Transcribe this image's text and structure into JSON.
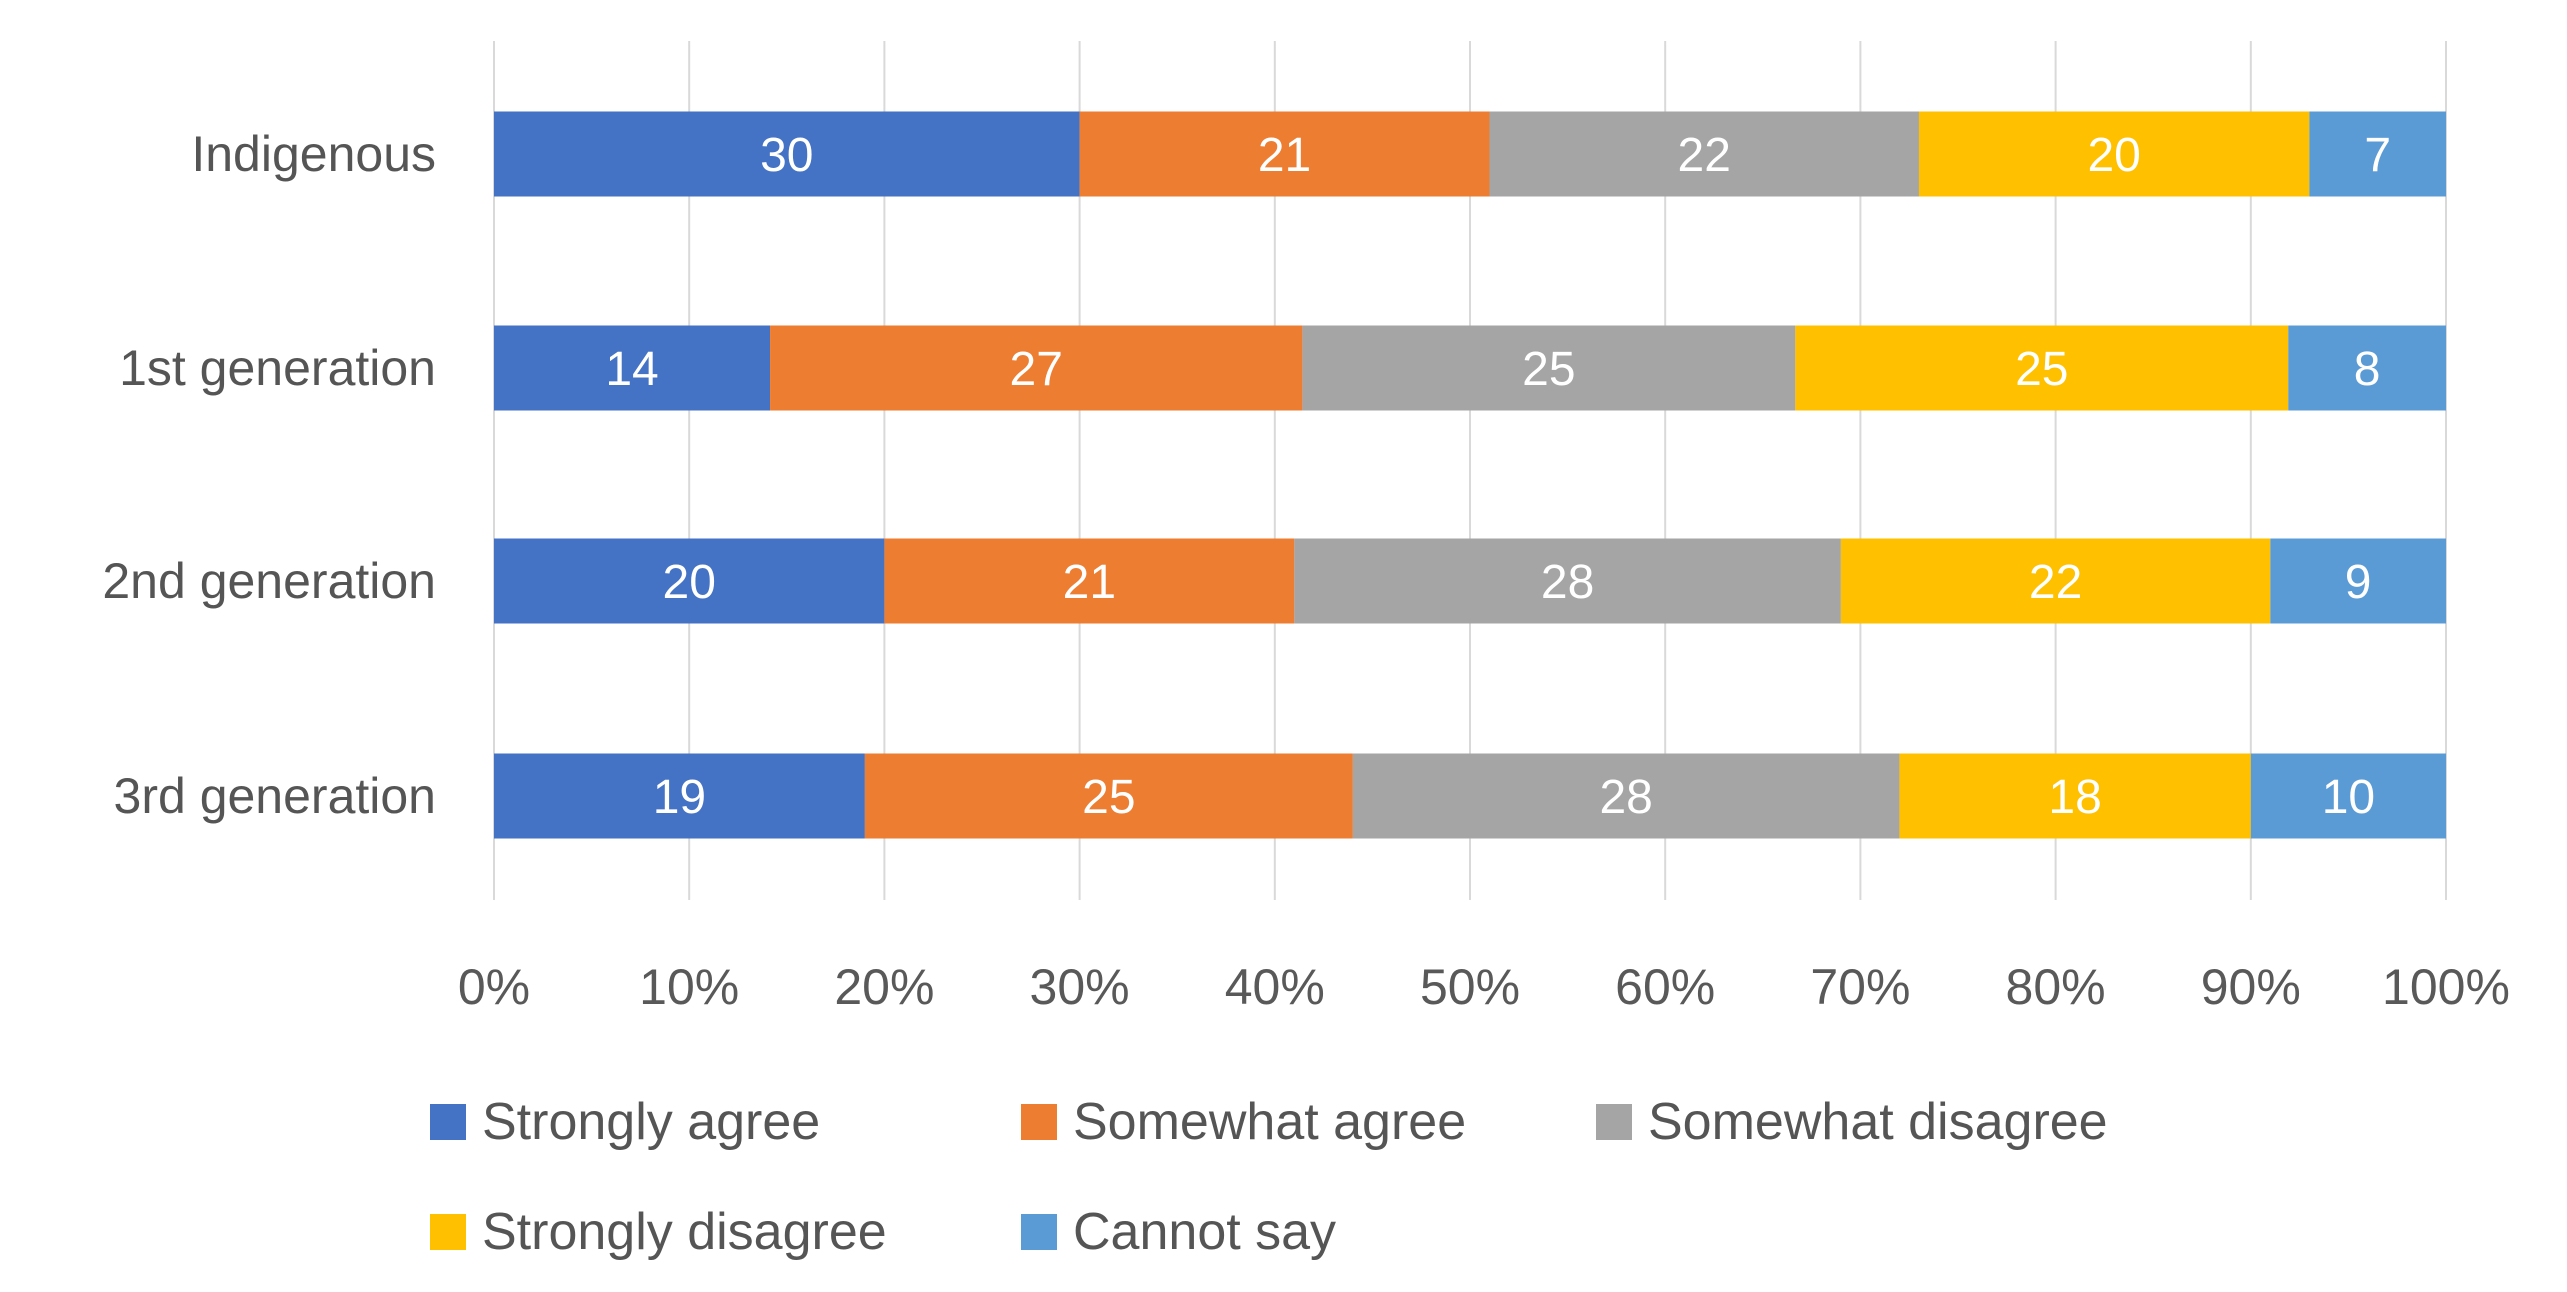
{
  "chart_data": {
    "type": "bar",
    "orientation": "horizontal",
    "stacked": "percent",
    "title": "",
    "xlabel": "",
    "ylabel": "",
    "categories": [
      "Indigenous",
      "1st generation",
      "2nd generation",
      "3rd generation"
    ],
    "series": [
      {
        "name": "Strongly agree",
        "color": "#4472C4",
        "values": [
          30,
          14,
          20,
          19
        ]
      },
      {
        "name": "Somewhat agree",
        "color": "#ED7D31",
        "values": [
          21,
          27,
          21,
          25
        ]
      },
      {
        "name": "Somewhat disagree",
        "color": "#A5A5A5",
        "values": [
          22,
          25,
          28,
          28
        ]
      },
      {
        "name": "Strongly disagree",
        "color": "#FFC000",
        "values": [
          20,
          25,
          22,
          18
        ]
      },
      {
        "name": "Cannot say",
        "color": "#5B9BD5",
        "values": [
          7,
          8,
          9,
          10
        ]
      }
    ],
    "xlim": [
      0,
      100
    ],
    "x_ticks": [
      "0%",
      "10%",
      "20%",
      "30%",
      "40%",
      "50%",
      "60%",
      "70%",
      "80%",
      "90%",
      "100%"
    ],
    "grid": true,
    "legend_position": "bottom"
  }
}
